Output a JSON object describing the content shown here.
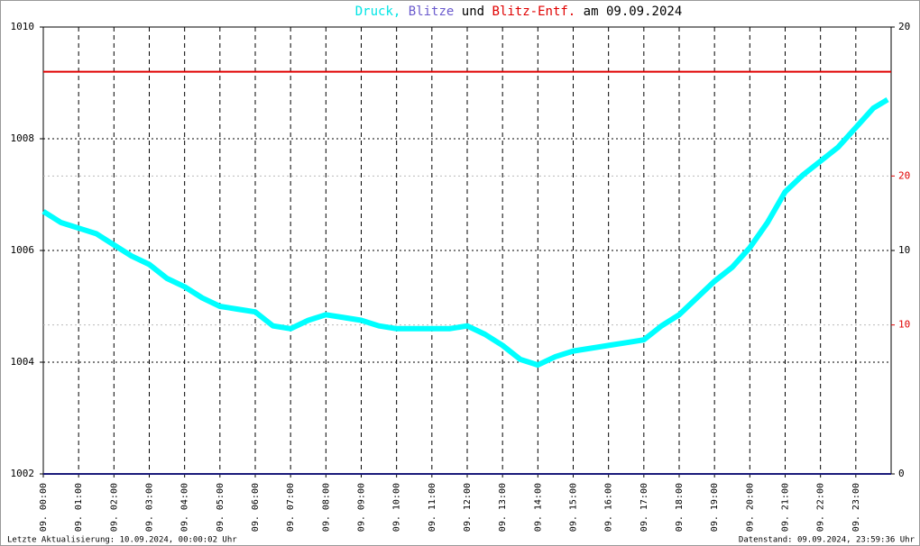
{
  "chart_data": {
    "type": "line",
    "title_parts": [
      {
        "text": "Druck,",
        "color": "#00e5e5"
      },
      {
        "text": "Blitze",
        "color": "#6a5acd"
      },
      {
        "text": "und",
        "color": "#000000"
      },
      {
        "text": "Blitz-Entf.",
        "color": "#e00000"
      },
      {
        "text": "am 09.09.2024",
        "color": "#000000"
      }
    ],
    "xlim": [
      0,
      24
    ],
    "xticks": [
      {
        "value": 0,
        "label": "09. 00:00"
      },
      {
        "value": 1,
        "label": "09. 01:00"
      },
      {
        "value": 2,
        "label": "09. 02:00"
      },
      {
        "value": 3,
        "label": "09. 03:00"
      },
      {
        "value": 4,
        "label": "09. 04:00"
      },
      {
        "value": 5,
        "label": "09. 05:00"
      },
      {
        "value": 6,
        "label": "09. 06:00"
      },
      {
        "value": 7,
        "label": "09. 07:00"
      },
      {
        "value": 8,
        "label": "09. 08:00"
      },
      {
        "value": 9,
        "label": "09. 09:00"
      },
      {
        "value": 10,
        "label": "09. 10:00"
      },
      {
        "value": 11,
        "label": "09. 11:00"
      },
      {
        "value": 12,
        "label": "09. 12:00"
      },
      {
        "value": 13,
        "label": "09. 13:00"
      },
      {
        "value": 14,
        "label": "09. 14:00"
      },
      {
        "value": 15,
        "label": "09. 15:00"
      },
      {
        "value": 16,
        "label": "09. 16:00"
      },
      {
        "value": 17,
        "label": "09. 17:00"
      },
      {
        "value": 18,
        "label": "09. 18:00"
      },
      {
        "value": 19,
        "label": "09. 19:00"
      },
      {
        "value": 20,
        "label": "09. 20:00"
      },
      {
        "value": 21,
        "label": "09. 21:00"
      },
      {
        "value": 22,
        "label": "09. 22:00"
      },
      {
        "value": 23,
        "label": "09. 23:00"
      }
    ],
    "ylim": [
      1002,
      1010
    ],
    "yticks": [
      1002,
      1004,
      1006,
      1008,
      1010
    ],
    "y2lim": [
      0,
      20
    ],
    "y2ticks": [
      0,
      10,
      20
    ],
    "y3lim": [
      0,
      30
    ],
    "y3ticks": [
      10,
      20
    ],
    "y3color": "#e00000",
    "grid": true,
    "series": [
      {
        "name": "Druck",
        "color": "#00ffff",
        "axis": "y",
        "x": [
          0,
          0.5,
          1,
          1.5,
          2,
          2.5,
          3,
          3.5,
          4,
          4.5,
          5,
          5.5,
          6,
          6.5,
          7,
          7.5,
          8,
          8.5,
          9,
          9.5,
          10,
          10.5,
          11,
          11.5,
          12,
          12.5,
          13,
          13.5,
          14,
          14.5,
          15,
          15.5,
          16,
          16.5,
          17,
          17.5,
          18,
          18.5,
          19,
          19.5,
          20,
          20.5,
          21,
          21.5,
          22,
          22.5,
          23,
          23.5,
          23.9
        ],
        "values": [
          1006.7,
          1006.5,
          1006.4,
          1006.3,
          1006.1,
          1005.9,
          1005.75,
          1005.5,
          1005.35,
          1005.15,
          1005.0,
          1004.95,
          1004.9,
          1004.65,
          1004.6,
          1004.75,
          1004.85,
          1004.8,
          1004.75,
          1004.65,
          1004.6,
          1004.6,
          1004.6,
          1004.6,
          1004.65,
          1004.5,
          1004.3,
          1004.05,
          1003.95,
          1004.1,
          1004.2,
          1004.25,
          1004.3,
          1004.35,
          1004.4,
          1004.65,
          1004.85,
          1005.15,
          1005.45,
          1005.7,
          1006.05,
          1006.5,
          1007.05,
          1007.35,
          1007.6,
          1007.85,
          1008.2,
          1008.55,
          1008.7
        ]
      },
      {
        "name": "Blitze",
        "color": "#1a1a7a",
        "axis": "y2",
        "x": [
          0,
          24
        ],
        "values": [
          0,
          0
        ]
      },
      {
        "name": "Blitz-Entf.",
        "color": "#e00000",
        "axis": "y3",
        "x": [
          0,
          24
        ],
        "values": [
          27,
          27
        ]
      }
    ],
    "footer_left": "Letzte Aktualisierung: 10.09.2024, 00:00:02 Uhr",
    "footer_right": "Datenstand: 09.09.2024, 23:59:36 Uhr"
  }
}
